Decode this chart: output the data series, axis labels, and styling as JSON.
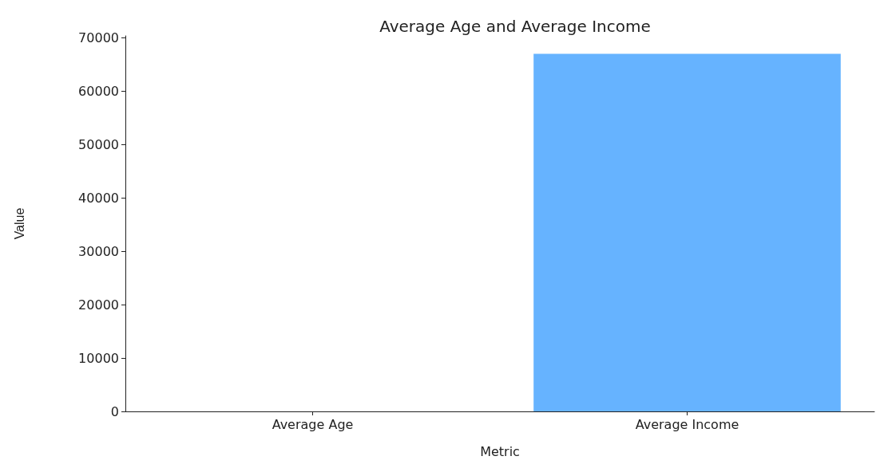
{
  "chart_data": {
    "type": "bar",
    "title": "Average Age and Average Income",
    "xlabel": "Metric",
    "ylabel": "Value",
    "categories": [
      "Average Age",
      "Average Income"
    ],
    "values": [
      0,
      67000
    ],
    "color": "#66b3ff",
    "ylim": [
      0,
      70350
    ],
    "yticks": [
      0,
      10000,
      20000,
      30000,
      40000,
      50000,
      60000,
      70000
    ],
    "grid": false
  }
}
